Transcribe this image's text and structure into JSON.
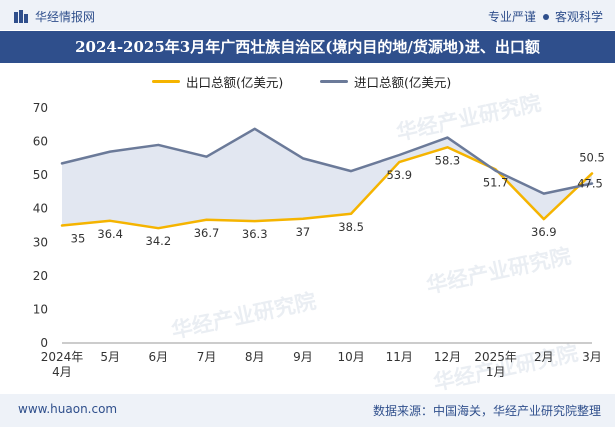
{
  "header": {
    "brand_name": "华经情报网",
    "tag_left": "专业严谨",
    "tag_right": "客观科学"
  },
  "title": "2024-2025年3月年广西壮族自治区(境内目的地/货源地)进、出口额",
  "watermark": "华经产业研究院",
  "footer": {
    "site": "www.huaon.com",
    "source": "数据来源：中国海关，华经产业研究院整理"
  },
  "colors": {
    "export": "#f5b400",
    "import": "#6b7a99",
    "band": "#dde3ee",
    "brand": "#2f4f8c"
  },
  "chart_data": {
    "type": "line",
    "categories": [
      "2024年\n4月",
      "5月",
      "6月",
      "7月",
      "8月",
      "9月",
      "10月",
      "11月",
      "12月",
      "2025年\n1月",
      "2月",
      "3月"
    ],
    "series": [
      {
        "name": "出口总额(亿美元)",
        "values": [
          35,
          36.4,
          34.2,
          36.7,
          36.3,
          37,
          38.5,
          53.9,
          58.3,
          51.7,
          36.9,
          50.5
        ]
      },
      {
        "name": "进口总额(亿美元)",
        "values": [
          53.5,
          57,
          59,
          55.5,
          63.8,
          55,
          51.2,
          56,
          61.2,
          51.3,
          44.5,
          47.5
        ]
      }
    ],
    "data_labels": [
      "35",
      "36.4",
      "34.2",
      "36.7",
      "36.3",
      "37",
      "38.5",
      "53.9",
      "58.3",
      "51.7",
      "36.9",
      "50.5",
      "47.5"
    ],
    "ylim": [
      0,
      70
    ],
    "yticks": [
      0,
      10,
      20,
      30,
      40,
      50,
      60,
      70
    ],
    "legend_position": "top-center",
    "grid": false
  }
}
